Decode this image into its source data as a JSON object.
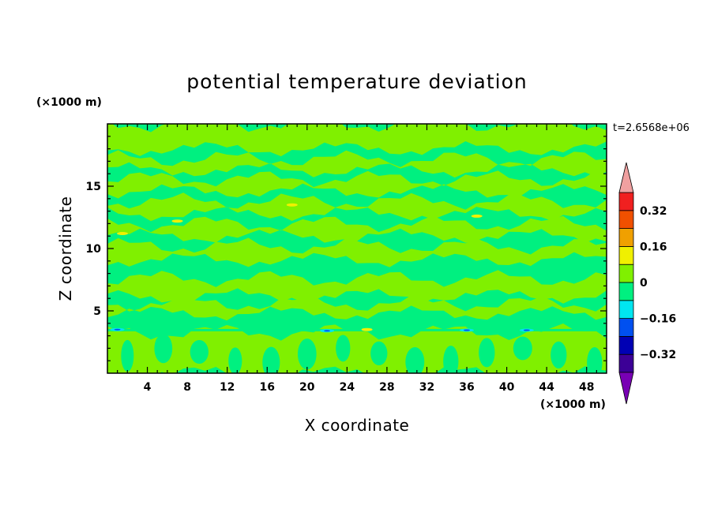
{
  "chart_data": {
    "type": "heatmap",
    "title": "potential temperature deviation",
    "xlabel": "X coordinate",
    "ylabel": "Z coordinate",
    "x_unit": "(×1000 m)",
    "y_unit": "(×1000 m)",
    "time_label": "t=2.6568e+06",
    "xlim": [
      0,
      50
    ],
    "ylim": [
      0,
      20
    ],
    "xticks": [
      4,
      8,
      12,
      16,
      20,
      24,
      28,
      32,
      36,
      40,
      44,
      48
    ],
    "yticks": [
      5,
      10,
      15
    ],
    "colorbar": {
      "labels": [
        {
          "value": 0.32,
          "text": "0.32"
        },
        {
          "value": 0.16,
          "text": "0.16"
        },
        {
          "value": 0,
          "text": "0"
        },
        {
          "value": -0.16,
          "text": "−0.16"
        },
        {
          "value": -0.32,
          "text": "−0.32"
        }
      ],
      "levels": [
        -0.4,
        -0.32,
        -0.24,
        -0.16,
        -0.08,
        0,
        0.08,
        0.16,
        0.24,
        0.32,
        0.4
      ],
      "colors": [
        "#3c0096",
        "#0000b4",
        "#0050f0",
        "#00e6f0",
        "#00f080",
        "#80f000",
        "#f0f000",
        "#f0a000",
        "#f05000",
        "#f02020"
      ],
      "under_color": "#7800b4",
      "over_color": "#f0a0a0"
    },
    "field_colors": {
      "background": "#00f080",
      "positive": "#80f000",
      "warm_spot": "#f0f000",
      "cold_spot": "#00e6f0",
      "strong_cold_spot": "#0050f0"
    },
    "bands_z": [
      [
        0,
        3.3
      ],
      [
        4.8,
        5.6
      ],
      [
        6.2,
        7.6
      ],
      [
        9.1,
        10.2
      ],
      [
        11.0,
        12.0
      ],
      [
        12.8,
        13.8
      ],
      [
        14.6,
        15.6
      ],
      [
        16.3,
        17.2
      ],
      [
        18.0,
        20.0
      ]
    ],
    "cold_spots": [
      [
        1,
        3.5
      ],
      [
        22,
        3.4
      ],
      [
        36,
        3.45
      ],
      [
        42,
        3.45
      ]
    ],
    "warm_spots": [
      [
        1.5,
        11.2
      ],
      [
        7,
        12.2
      ],
      [
        18.5,
        13.5
      ],
      [
        37,
        12.6
      ],
      [
        26,
        3.5
      ]
    ]
  }
}
